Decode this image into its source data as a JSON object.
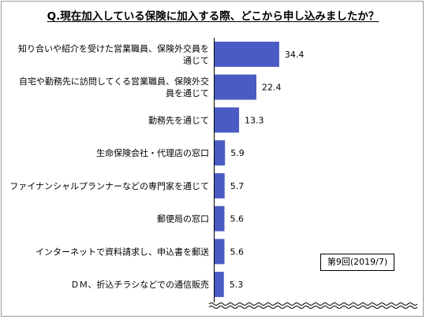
{
  "chart_data": {
    "type": "bar",
    "orientation": "horizontal",
    "title": "Q.現在加入している保険に加入する際、どこから申し込みましたか？",
    "categories": [
      "知り合いや紹介を受けた営業職員、保険外交員を通じて",
      "自宅や勤務先に訪問してくる営業職員、保険外交員を通じて",
      "勤務先を通じて",
      "生命保険会社・代理店の窓口",
      "ファイナンシャルプランナーなどの専門家を通じて",
      "郵便局の窓口",
      "インターネットで資料請求し、申込書を郵送",
      "ＤＭ、折込チラシなどでの通信販売"
    ],
    "category_lines": [
      [
        "知り合いや紹介を受けた営業職員、保険外交員を",
        "通じて"
      ],
      [
        "自宅や勤務先に訪問してくる営業職員、保険外交",
        "員を通じて"
      ],
      [
        "勤務先を通じて"
      ],
      [
        "生命保険会社・代理店の窓口"
      ],
      [
        "ファイナンシャルプランナーなどの専門家を通じて"
      ],
      [
        "郵便局の窓口"
      ],
      [
        "インターネットで資料請求し、申込書を郵送"
      ],
      [
        "ＤＭ、折込チラシなどでの通信販売"
      ]
    ],
    "values": [
      34.4,
      22.4,
      13.3,
      5.9,
      5.7,
      5.6,
      5.6,
      5.3
    ],
    "value_labels": [
      "34.4",
      "22.4",
      "13.3",
      "5.9",
      "5.7",
      "5.6",
      "5.6",
      "5.3"
    ],
    "xlim": [
      0,
      100
    ],
    "bar_color": "#4a5bc4",
    "grid": false,
    "legend": "none",
    "axis_break": true
  },
  "note": "第9回(2019/7)"
}
